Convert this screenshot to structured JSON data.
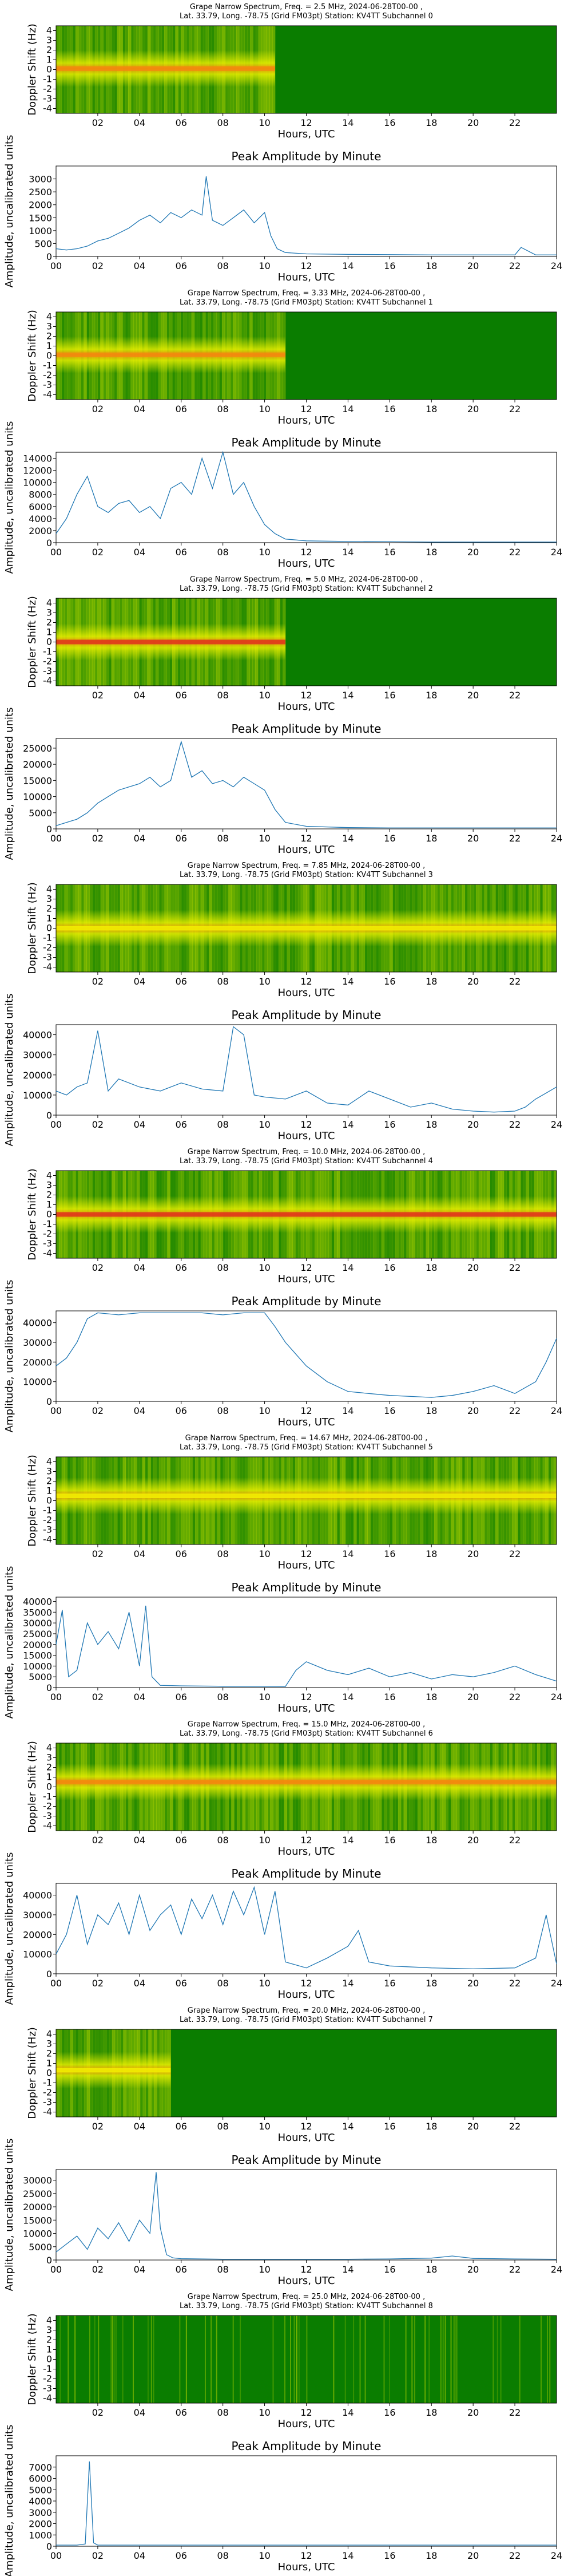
{
  "page": {
    "background": "#ffffff"
  },
  "colors": {
    "spectrum_green": "#0a7d00",
    "spectrum_yellow": "#f2f400",
    "spectrum_orange": "#f48a0e",
    "spectrum_red": "#e0331c",
    "line": "#1f77b4"
  },
  "spectrum_axes": {
    "xlabel": "Hours, UTC",
    "ylabel": "Doppler Shift (Hz)",
    "xticks": [
      "02",
      "04",
      "06",
      "08",
      "10",
      "12",
      "14",
      "16",
      "18",
      "20",
      "22"
    ],
    "yticks": [
      "4",
      "3",
      "2",
      "1",
      "0",
      "-1",
      "-2",
      "-3",
      "-4"
    ]
  },
  "amplitude_axes": {
    "title": "Peak Amplitude by Minute",
    "xlabel": "Hours, UTC",
    "ylabel": "Amplitude, uncalibrated units",
    "xticks": [
      "00",
      "02",
      "04",
      "06",
      "08",
      "10",
      "12",
      "14",
      "16",
      "18",
      "20",
      "22",
      "24"
    ]
  },
  "chart_data": [
    {
      "type": "heatmap",
      "title": "Grape Narrow Spectrum, Freq. = 2.5 MHz, 2024-06-28T00-00 ,",
      "subtitle": "Lat.  33.79, Long. -78.75 (Grid FM03pt) Station: KV4TT Subchannel 0",
      "xlabel": "Hours, UTC",
      "ylabel": "Doppler Shift (Hz)",
      "xlim": [
        0,
        24
      ],
      "ylim": [
        -4.5,
        4.5
      ],
      "active_until_hour": 10.5,
      "peak_intensity": "orange",
      "carrier_offset_hz": 0.1
    },
    {
      "type": "line",
      "title": "Peak Amplitude by Minute",
      "xlabel": "Hours, UTC",
      "ylabel": "Amplitude, uncalibrated units",
      "xlim": [
        0,
        24
      ],
      "ylim": [
        0,
        3500
      ],
      "yticks": [
        0,
        500,
        1000,
        1500,
        2000,
        2500,
        3000
      ],
      "x": [
        0,
        0.5,
        1,
        1.5,
        2,
        2.5,
        3,
        3.5,
        4,
        4.5,
        5,
        5.5,
        6,
        6.5,
        7,
        7.2,
        7.5,
        8,
        8.5,
        9,
        9.5,
        10,
        10.3,
        10.6,
        11,
        12,
        14,
        16,
        18,
        20,
        21,
        22,
        22.3,
        23,
        24
      ],
      "y": [
        300,
        250,
        300,
        400,
        600,
        700,
        900,
        1100,
        1400,
        1600,
        1300,
        1700,
        1500,
        1800,
        1600,
        3100,
        1400,
        1200,
        1500,
        1800,
        1300,
        1700,
        800,
        300,
        150,
        100,
        80,
        70,
        60,
        60,
        60,
        60,
        350,
        60,
        60
      ]
    },
    {
      "type": "heatmap",
      "title": "Grape Narrow Spectrum, Freq. = 3.33 MHz, 2024-06-28T00-00 ,",
      "subtitle": "Lat.  33.79, Long. -78.75 (Grid FM03pt) Station: KV4TT Subchannel 1",
      "xlabel": "Hours, UTC",
      "ylabel": "Doppler Shift (Hz)",
      "xlim": [
        0,
        24
      ],
      "ylim": [
        -4.5,
        4.5
      ],
      "active_until_hour": 11,
      "peak_intensity": "orange",
      "carrier_offset_hz": 0.1
    },
    {
      "type": "line",
      "title": "Peak Amplitude by Minute",
      "xlabel": "Hours, UTC",
      "ylabel": "Amplitude, uncalibrated units",
      "xlim": [
        0,
        24
      ],
      "ylim": [
        0,
        15000
      ],
      "yticks": [
        0,
        2000,
        4000,
        6000,
        8000,
        10000,
        12000,
        14000
      ],
      "x": [
        0,
        0.5,
        1,
        1.5,
        2,
        2.5,
        3,
        3.5,
        4,
        4.5,
        5,
        5.5,
        6,
        6.5,
        7,
        7.5,
        8,
        8.5,
        9,
        9.5,
        10,
        10.5,
        11,
        12,
        14,
        16,
        18,
        20,
        22,
        24
      ],
      "y": [
        1500,
        4000,
        8000,
        11000,
        6000,
        5000,
        6500,
        7000,
        5000,
        6000,
        4000,
        9000,
        10000,
        8000,
        14000,
        9000,
        15000,
        8000,
        10000,
        6000,
        3000,
        1500,
        600,
        300,
        200,
        150,
        100,
        100,
        100,
        100
      ]
    },
    {
      "type": "heatmap",
      "title": "Grape Narrow Spectrum, Freq. = 5.0 MHz, 2024-06-28T00-00 ,",
      "subtitle": "Lat.  33.79, Long. -78.75 (Grid FM03pt) Station: KV4TT Subchannel 2",
      "xlabel": "Hours, UTC",
      "ylabel": "Doppler Shift (Hz)",
      "xlim": [
        0,
        24
      ],
      "ylim": [
        -4.5,
        4.5
      ],
      "active_until_hour": 11,
      "peak_intensity": "red",
      "carrier_offset_hz": 0.0
    },
    {
      "type": "line",
      "title": "Peak Amplitude by Minute",
      "xlabel": "Hours, UTC",
      "ylabel": "Amplitude, uncalibrated units",
      "xlim": [
        0,
        24
      ],
      "ylim": [
        0,
        28000
      ],
      "yticks": [
        0,
        5000,
        10000,
        15000,
        20000,
        25000
      ],
      "x": [
        0,
        0.5,
        1,
        1.5,
        2,
        2.5,
        3,
        3.5,
        4,
        4.5,
        5,
        5.5,
        6,
        6.5,
        7,
        7.5,
        8,
        8.5,
        9,
        9.5,
        10,
        10.5,
        11,
        12,
        14,
        16,
        18,
        20,
        22,
        24
      ],
      "y": [
        1000,
        2000,
        3000,
        5000,
        8000,
        10000,
        12000,
        13000,
        14000,
        16000,
        13000,
        15000,
        27000,
        16000,
        18000,
        14000,
        15000,
        13000,
        16000,
        14000,
        12000,
        6000,
        2000,
        800,
        400,
        300,
        300,
        300,
        300,
        300
      ]
    },
    {
      "type": "heatmap",
      "title": "Grape Narrow Spectrum, Freq. = 7.85 MHz, 2024-06-28T00-00 ,",
      "subtitle": "Lat.  33.79, Long. -78.75 (Grid FM03pt) Station: KV4TT Subchannel 3",
      "xlabel": "Hours, UTC",
      "ylabel": "Doppler Shift (Hz)",
      "xlim": [
        0,
        24
      ],
      "ylim": [
        -4.5,
        4.5
      ],
      "active_until_hour": 24,
      "peak_intensity": "yellow",
      "carrier_offset_hz": 0.0
    },
    {
      "type": "line",
      "title": "Peak Amplitude by Minute",
      "xlabel": "Hours, UTC",
      "ylabel": "Amplitude, uncalibrated units",
      "xlim": [
        0,
        24
      ],
      "ylim": [
        0,
        45000
      ],
      "yticks": [
        0,
        10000,
        20000,
        30000,
        40000
      ],
      "x": [
        0,
        0.5,
        1,
        1.5,
        2,
        2.5,
        3,
        4,
        5,
        6,
        7,
        8,
        8.5,
        9,
        9.5,
        10,
        11,
        12,
        13,
        14,
        15,
        16,
        17,
        18,
        19,
        20,
        21,
        22,
        22.5,
        23,
        23.5,
        24
      ],
      "y": [
        12000,
        10000,
        14000,
        16000,
        42000,
        12000,
        18000,
        14000,
        12000,
        16000,
        13000,
        12000,
        44000,
        40000,
        10000,
        9000,
        8000,
        12000,
        6000,
        5000,
        12000,
        8000,
        4000,
        6000,
        3000,
        2000,
        1500,
        2000,
        4000,
        8000,
        11000,
        14000
      ]
    },
    {
      "type": "heatmap",
      "title": "Grape Narrow Spectrum, Freq. = 10.0 MHz, 2024-06-28T00-00 ,",
      "subtitle": "Lat.  33.79, Long. -78.75 (Grid FM03pt) Station: KV4TT Subchannel 4",
      "xlabel": "Hours, UTC",
      "ylabel": "Doppler Shift (Hz)",
      "xlim": [
        0,
        24
      ],
      "ylim": [
        -4.5,
        4.5
      ],
      "active_until_hour": 24,
      "peak_intensity": "red",
      "carrier_offset_hz": 0.0
    },
    {
      "type": "line",
      "title": "Peak Amplitude by Minute",
      "xlabel": "Hours, UTC",
      "ylabel": "Amplitude, uncalibrated units",
      "xlim": [
        0,
        24
      ],
      "ylim": [
        0,
        46000
      ],
      "yticks": [
        0,
        10000,
        20000,
        30000,
        40000
      ],
      "x": [
        0,
        0.5,
        1,
        1.5,
        2,
        3,
        4,
        5,
        6,
        7,
        8,
        9,
        10,
        10.5,
        11,
        12,
        13,
        14,
        15,
        16,
        17,
        18,
        19,
        20,
        21,
        22,
        23,
        23.5,
        24
      ],
      "y": [
        18000,
        22000,
        30000,
        42000,
        45000,
        44000,
        45000,
        45000,
        45000,
        45000,
        44000,
        45000,
        45000,
        38000,
        30000,
        18000,
        10000,
        5000,
        4000,
        3000,
        2500,
        2000,
        3000,
        5000,
        8000,
        4000,
        10000,
        20000,
        32000
      ]
    },
    {
      "type": "heatmap",
      "title": "Grape Narrow Spectrum, Freq. = 14.67 MHz, 2024-06-28T00-00 ,",
      "subtitle": "Lat.  33.79, Long. -78.75 (Grid FM03pt) Station: KV4TT Subchannel 5",
      "xlabel": "Hours, UTC",
      "ylabel": "Doppler Shift (Hz)",
      "xlim": [
        0,
        24
      ],
      "ylim": [
        -4.5,
        4.5
      ],
      "active_until_hour": 24,
      "peak_intensity": "yellow",
      "carrier_offset_hz": 0.5
    },
    {
      "type": "line",
      "title": "Peak Amplitude by Minute",
      "xlabel": "Hours, UTC",
      "ylabel": "Amplitude, uncalibrated units",
      "xlim": [
        0,
        24
      ],
      "ylim": [
        0,
        42000
      ],
      "yticks": [
        0,
        5000,
        10000,
        15000,
        20000,
        25000,
        30000,
        35000,
        40000
      ],
      "x": [
        0,
        0.3,
        0.6,
        1,
        1.5,
        2,
        2.5,
        3,
        3.5,
        4,
        4.3,
        4.6,
        5,
        6,
        8,
        10,
        11,
        11.5,
        12,
        13,
        14,
        15,
        16,
        17,
        18,
        19,
        20,
        21,
        22,
        23,
        24
      ],
      "y": [
        20000,
        36000,
        5000,
        8000,
        30000,
        20000,
        26000,
        18000,
        35000,
        10000,
        38000,
        5000,
        1000,
        800,
        600,
        600,
        500,
        8000,
        12000,
        8000,
        6000,
        9000,
        5000,
        7000,
        4000,
        6000,
        5000,
        7000,
        10000,
        6000,
        3000
      ]
    },
    {
      "type": "heatmap",
      "title": "Grape Narrow Spectrum, Freq. = 15.0 MHz, 2024-06-28T00-00 ,",
      "subtitle": "Lat.  33.79, Long. -78.75 (Grid FM03pt) Station: KV4TT Subchannel 6",
      "xlabel": "Hours, UTC",
      "ylabel": "Doppler Shift (Hz)",
      "xlim": [
        0,
        24
      ],
      "ylim": [
        -4.5,
        4.5
      ],
      "active_until_hour": 24,
      "peak_intensity": "orange",
      "carrier_offset_hz": 0.5
    },
    {
      "type": "line",
      "title": "Peak Amplitude by Minute",
      "xlabel": "Hours, UTC",
      "ylabel": "Amplitude, uncalibrated units",
      "xlim": [
        0,
        24
      ],
      "ylim": [
        0,
        46000
      ],
      "yticks": [
        0,
        10000,
        20000,
        30000,
        40000
      ],
      "x": [
        0,
        0.5,
        1,
        1.5,
        2,
        2.5,
        3,
        3.5,
        4,
        4.5,
        5,
        5.5,
        6,
        6.5,
        7,
        7.5,
        8,
        8.5,
        9,
        9.5,
        10,
        10.5,
        11,
        12,
        13,
        14,
        14.5,
        15,
        16,
        18,
        20,
        22,
        23,
        23.5,
        24
      ],
      "y": [
        10000,
        20000,
        40000,
        15000,
        30000,
        25000,
        36000,
        20000,
        40000,
        22000,
        30000,
        35000,
        20000,
        38000,
        28000,
        40000,
        25000,
        42000,
        30000,
        44000,
        20000,
        42000,
        6000,
        3000,
        8000,
        14000,
        22000,
        6000,
        4000,
        3000,
        2500,
        3000,
        8000,
        30000,
        5000
      ]
    },
    {
      "type": "heatmap",
      "title": "Grape Narrow Spectrum, Freq. = 20.0 MHz, 2024-06-28T00-00 ,",
      "subtitle": "Lat.  33.79, Long. -78.75 (Grid FM03pt) Station: KV4TT Subchannel 7",
      "xlabel": "Hours, UTC",
      "ylabel": "Doppler Shift (Hz)",
      "xlim": [
        0,
        24
      ],
      "ylim": [
        -4.5,
        4.5
      ],
      "active_until_hour": 5.5,
      "peak_intensity": "yellow",
      "carrier_offset_hz": 0.3
    },
    {
      "type": "line",
      "title": "Peak Amplitude by Minute",
      "xlabel": "Hours, UTC",
      "ylabel": "Amplitude, uncalibrated units",
      "xlim": [
        0,
        24
      ],
      "ylim": [
        0,
        34000
      ],
      "yticks": [
        0,
        5000,
        10000,
        15000,
        20000,
        25000,
        30000
      ],
      "x": [
        0,
        0.5,
        1,
        1.5,
        2,
        2.5,
        3,
        3.5,
        4,
        4.5,
        4.8,
        5,
        5.3,
        5.6,
        6,
        8,
        10,
        12,
        14,
        16,
        18,
        19,
        20,
        22,
        24
      ],
      "y": [
        3000,
        6000,
        9000,
        4000,
        12000,
        8000,
        14000,
        7000,
        15000,
        10000,
        33000,
        12000,
        2000,
        800,
        500,
        300,
        300,
        300,
        300,
        400,
        700,
        1500,
        600,
        400,
        300
      ]
    },
    {
      "type": "heatmap",
      "title": "Grape Narrow Spectrum, Freq. = 25.0 MHz, 2024-06-28T00-00 ,",
      "subtitle": "Lat.  33.79, Long. -78.75 (Grid FM03pt) Station: KV4TT Subchannel 8",
      "xlabel": "Hours, UTC",
      "ylabel": "Doppler Shift (Hz)",
      "xlim": [
        0,
        24
      ],
      "ylim": [
        -4.5,
        4.5
      ],
      "active_until_hour": 0,
      "peak_intensity": "green",
      "carrier_offset_hz": 0.0
    },
    {
      "type": "line",
      "title": "Peak Amplitude by Minute",
      "xlabel": "Hours, UTC",
      "ylabel": "Amplitude, uncalibrated units",
      "xlim": [
        0,
        24
      ],
      "ylim": [
        0,
        8000
      ],
      "yticks": [
        0,
        1000,
        2000,
        3000,
        4000,
        5000,
        6000,
        7000
      ],
      "x": [
        0,
        0.5,
        1,
        1.4,
        1.6,
        1.8,
        2,
        3,
        6,
        10,
        14,
        18,
        22,
        24
      ],
      "y": [
        100,
        100,
        100,
        200,
        7500,
        300,
        100,
        100,
        100,
        100,
        100,
        100,
        100,
        100
      ]
    }
  ]
}
